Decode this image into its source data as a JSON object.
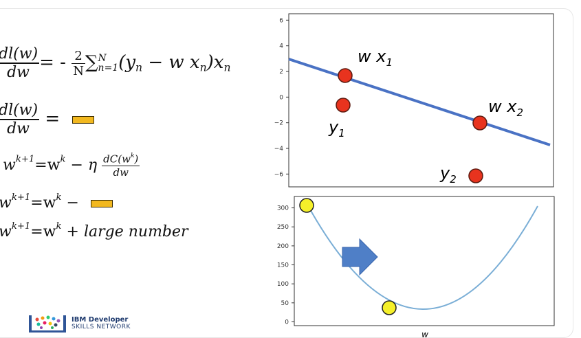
{
  "equations": {
    "eq1": {
      "dl": "dl(w)",
      "dw": "dw",
      "eq": "= -",
      "two": "2",
      "N": "N",
      "sum": "∑",
      "sum_upper": "N",
      "sum_lower": "n=1",
      "body": "(y",
      "body_sub": "n",
      "minus_w_x": " − w x",
      "xn_sub": "n",
      "close": ")x",
      "close_sub": "n"
    },
    "eq2": {
      "dl": "dl(w)",
      "dw": "dw",
      "eq": "="
    },
    "eq3": {
      "lhs": "w",
      "lhs_sup": "k+1",
      "eq": "=w",
      "eq_sup": "k",
      "minus": " − η",
      "dc": "dC(w",
      "dc_sup": "k",
      "dc_close": ")",
      "dw": "dw"
    },
    "eq4": {
      "lhs": "w",
      "lhs_sup": "k+1",
      "eq": "=w",
      "eq_sup": "k",
      "minus": " −"
    },
    "eq5": {
      "lhs": "w",
      "lhs_sup": "k+1",
      "eq": "=w",
      "eq_sup": "k",
      "tail": " + large number"
    }
  },
  "chart_data": [
    {
      "type": "scatter",
      "ylim": [
        -7,
        6.5
      ],
      "yticks": [
        "6",
        "4",
        "2",
        "0",
        "−2",
        "−4",
        "−6"
      ],
      "ytick_values": [
        6,
        4,
        2,
        0,
        -2,
        -4,
        -6
      ],
      "line": {
        "color": "#4a72c4"
      },
      "points": [
        {
          "label": "w x",
          "label_sub": "1",
          "color": "#e8331e"
        },
        {
          "label": "y",
          "label_sub": "1",
          "color": "#e8331e"
        },
        {
          "label": "w x",
          "label_sub": "2",
          "color": "#e8331e"
        },
        {
          "label": "y",
          "label_sub": "2",
          "color": "#e8331e"
        }
      ]
    },
    {
      "type": "line",
      "xlabel": "w",
      "ylim": [
        -10,
        330
      ],
      "yticks": [
        "300",
        "250",
        "200",
        "150",
        "100",
        "50",
        "0"
      ],
      "ytick_values": [
        300,
        250,
        200,
        150,
        100,
        50,
        0
      ],
      "curve_color": "#7aaed6",
      "marker_color": "#f5f02a",
      "arrow_color": "#4f7fc7"
    }
  ],
  "brand": {
    "line1": "IBM Developer",
    "line2": "SKILLS NETWORK"
  }
}
